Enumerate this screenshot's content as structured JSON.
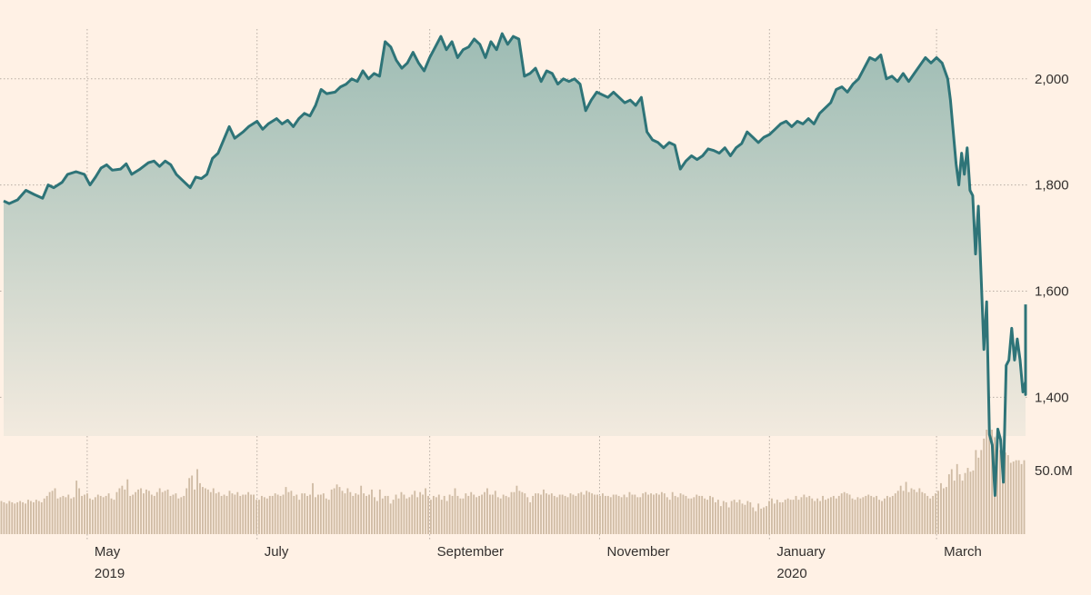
{
  "chart_data": {
    "type": "line",
    "title": "",
    "xlabel": "",
    "ylabel": "",
    "x_range": [
      "2019-04-01",
      "2020-03-31"
    ],
    "price": {
      "ylim": [
        1190,
        2140
      ],
      "y_ticks": [
        {
          "value": 2000,
          "label": "2,000"
        },
        {
          "value": 1800,
          "label": "1,800"
        },
        {
          "value": 1600,
          "label": "1,600"
        },
        {
          "value": 1400,
          "label": "1,400"
        }
      ],
      "line_color": "#2e7478",
      "fill_top_color": "#9dbcb4",
      "fill_bottom_color": "#fff1e5",
      "points": [
        [
          "2019-04-01",
          1770
        ],
        [
          "2019-04-03",
          1765
        ],
        [
          "2019-04-06",
          1772
        ],
        [
          "2019-04-09",
          1790
        ],
        [
          "2019-04-12",
          1782
        ],
        [
          "2019-04-15",
          1775
        ],
        [
          "2019-04-17",
          1800
        ],
        [
          "2019-04-19",
          1795
        ],
        [
          "2019-04-22",
          1805
        ],
        [
          "2019-04-24",
          1820
        ],
        [
          "2019-04-27",
          1825
        ],
        [
          "2019-04-30",
          1820
        ],
        [
          "2019-05-02",
          1800
        ],
        [
          "2019-05-04",
          1815
        ],
        [
          "2019-05-06",
          1832
        ],
        [
          "2019-05-08",
          1838
        ],
        [
          "2019-05-10",
          1828
        ],
        [
          "2019-05-13",
          1830
        ],
        [
          "2019-05-15",
          1840
        ],
        [
          "2019-05-17",
          1820
        ],
        [
          "2019-05-20",
          1830
        ],
        [
          "2019-05-23",
          1842
        ],
        [
          "2019-05-25",
          1845
        ],
        [
          "2019-05-27",
          1835
        ],
        [
          "2019-05-29",
          1845
        ],
        [
          "2019-05-31",
          1838
        ],
        [
          "2019-06-02",
          1820
        ],
        [
          "2019-06-04",
          1810
        ],
        [
          "2019-06-07",
          1795
        ],
        [
          "2019-06-09",
          1815
        ],
        [
          "2019-06-11",
          1812
        ],
        [
          "2019-06-13",
          1820
        ],
        [
          "2019-06-15",
          1850
        ],
        [
          "2019-06-17",
          1860
        ],
        [
          "2019-06-19",
          1885
        ],
        [
          "2019-06-21",
          1910
        ],
        [
          "2019-06-23",
          1888
        ],
        [
          "2019-06-26",
          1900
        ],
        [
          "2019-06-28",
          1910
        ],
        [
          "2019-07-01",
          1920
        ],
        [
          "2019-07-03",
          1905
        ],
        [
          "2019-07-05",
          1915
        ],
        [
          "2019-07-08",
          1925
        ],
        [
          "2019-07-10",
          1915
        ],
        [
          "2019-07-12",
          1922
        ],
        [
          "2019-07-14",
          1910
        ],
        [
          "2019-07-16",
          1925
        ],
        [
          "2019-07-18",
          1935
        ],
        [
          "2019-07-20",
          1930
        ],
        [
          "2019-07-22",
          1950
        ],
        [
          "2019-07-24",
          1980
        ],
        [
          "2019-07-26",
          1972
        ],
        [
          "2019-07-29",
          1975
        ],
        [
          "2019-07-31",
          1985
        ],
        [
          "2019-08-02",
          1990
        ],
        [
          "2019-08-04",
          2000
        ],
        [
          "2019-08-06",
          1995
        ],
        [
          "2019-08-08",
          2015
        ],
        [
          "2019-08-10",
          2000
        ],
        [
          "2019-08-12",
          2010
        ],
        [
          "2019-08-14",
          2005
        ],
        [
          "2019-08-16",
          2070
        ],
        [
          "2019-08-18",
          2060
        ],
        [
          "2019-08-20",
          2035
        ],
        [
          "2019-08-22",
          2020
        ],
        [
          "2019-08-24",
          2030
        ],
        [
          "2019-08-26",
          2050
        ],
        [
          "2019-08-28",
          2030
        ],
        [
          "2019-08-30",
          2015
        ],
        [
          "2019-09-01",
          2040
        ],
        [
          "2019-09-03",
          2060
        ],
        [
          "2019-09-05",
          2080
        ],
        [
          "2019-09-07",
          2055
        ],
        [
          "2019-09-09",
          2070
        ],
        [
          "2019-09-11",
          2040
        ],
        [
          "2019-09-13",
          2055
        ],
        [
          "2019-09-15",
          2060
        ],
        [
          "2019-09-17",
          2075
        ],
        [
          "2019-09-19",
          2065
        ],
        [
          "2019-09-21",
          2040
        ],
        [
          "2019-09-23",
          2070
        ],
        [
          "2019-09-25",
          2055
        ],
        [
          "2019-09-27",
          2085
        ],
        [
          "2019-09-29",
          2065
        ],
        [
          "2019-10-01",
          2080
        ],
        [
          "2019-10-03",
          2075
        ],
        [
          "2019-10-05",
          2005
        ],
        [
          "2019-10-07",
          2010
        ],
        [
          "2019-10-09",
          2020
        ],
        [
          "2019-10-11",
          1995
        ],
        [
          "2019-10-13",
          2015
        ],
        [
          "2019-10-15",
          2010
        ],
        [
          "2019-10-17",
          1990
        ],
        [
          "2019-10-19",
          2000
        ],
        [
          "2019-10-21",
          1995
        ],
        [
          "2019-10-23",
          2000
        ],
        [
          "2019-10-25",
          1990
        ],
        [
          "2019-10-27",
          1940
        ],
        [
          "2019-10-29",
          1960
        ],
        [
          "2019-10-31",
          1975
        ],
        [
          "2019-11-02",
          1970
        ],
        [
          "2019-11-04",
          1965
        ],
        [
          "2019-11-06",
          1975
        ],
        [
          "2019-11-08",
          1965
        ],
        [
          "2019-11-10",
          1955
        ],
        [
          "2019-11-12",
          1960
        ],
        [
          "2019-11-14",
          1950
        ],
        [
          "2019-11-16",
          1965
        ],
        [
          "2019-11-18",
          1900
        ],
        [
          "2019-11-20",
          1885
        ],
        [
          "2019-11-22",
          1880
        ],
        [
          "2019-11-24",
          1870
        ],
        [
          "2019-11-26",
          1880
        ],
        [
          "2019-11-28",
          1875
        ],
        [
          "2019-11-30",
          1830
        ],
        [
          "2019-12-02",
          1845
        ],
        [
          "2019-12-04",
          1855
        ],
        [
          "2019-12-06",
          1848
        ],
        [
          "2019-12-08",
          1855
        ],
        [
          "2019-12-10",
          1868
        ],
        [
          "2019-12-12",
          1865
        ],
        [
          "2019-12-14",
          1860
        ],
        [
          "2019-12-16",
          1870
        ],
        [
          "2019-12-18",
          1855
        ],
        [
          "2019-12-20",
          1870
        ],
        [
          "2019-12-22",
          1878
        ],
        [
          "2019-12-24",
          1900
        ],
        [
          "2019-12-26",
          1890
        ],
        [
          "2019-12-28",
          1880
        ],
        [
          "2019-12-30",
          1890
        ],
        [
          "2020-01-01",
          1895
        ],
        [
          "2020-01-03",
          1905
        ],
        [
          "2020-01-05",
          1915
        ],
        [
          "2020-01-07",
          1920
        ],
        [
          "2020-01-09",
          1910
        ],
        [
          "2020-01-11",
          1920
        ],
        [
          "2020-01-13",
          1915
        ],
        [
          "2020-01-15",
          1925
        ],
        [
          "2020-01-17",
          1915
        ],
        [
          "2020-01-19",
          1935
        ],
        [
          "2020-01-21",
          1945
        ],
        [
          "2020-01-23",
          1955
        ],
        [
          "2020-01-25",
          1980
        ],
        [
          "2020-01-27",
          1985
        ],
        [
          "2020-01-29",
          1975
        ],
        [
          "2020-01-31",
          1990
        ],
        [
          "2020-02-02",
          2000
        ],
        [
          "2020-02-04",
          2020
        ],
        [
          "2020-02-06",
          2040
        ],
        [
          "2020-02-08",
          2035
        ],
        [
          "2020-02-10",
          2045
        ],
        [
          "2020-02-12",
          2000
        ],
        [
          "2020-02-14",
          2005
        ],
        [
          "2020-02-16",
          1995
        ],
        [
          "2020-02-18",
          2010
        ],
        [
          "2020-02-20",
          1995
        ],
        [
          "2020-02-22",
          2010
        ],
        [
          "2020-02-24",
          2025
        ],
        [
          "2020-02-26",
          2040
        ],
        [
          "2020-02-28",
          2030
        ],
        [
          "2020-03-01",
          2040
        ],
        [
          "2020-03-03",
          2030
        ],
        [
          "2020-03-05",
          2000
        ],
        [
          "2020-03-06",
          1960
        ],
        [
          "2020-03-08",
          1840
        ],
        [
          "2020-03-09",
          1800
        ],
        [
          "2020-03-10",
          1860
        ],
        [
          "2020-03-11",
          1820
        ],
        [
          "2020-03-12",
          1870
        ],
        [
          "2020-03-13",
          1790
        ],
        [
          "2020-03-14",
          1780
        ],
        [
          "2020-03-15",
          1670
        ],
        [
          "2020-03-16",
          1760
        ],
        [
          "2020-03-17",
          1630
        ],
        [
          "2020-03-18",
          1490
        ],
        [
          "2020-03-19",
          1580
        ],
        [
          "2020-03-20",
          1330
        ],
        [
          "2020-03-21",
          1310
        ],
        [
          "2020-03-22",
          1215
        ],
        [
          "2020-03-23",
          1340
        ],
        [
          "2020-03-24",
          1320
        ],
        [
          "2020-03-25",
          1240
        ],
        [
          "2020-03-26",
          1460
        ],
        [
          "2020-03-27",
          1470
        ],
        [
          "2020-03-28",
          1530
        ],
        [
          "2020-03-29",
          1470
        ],
        [
          "2020-03-30",
          1510
        ],
        [
          "2020-03-31",
          1470
        ],
        [
          "2020-04-01",
          1410
        ],
        [
          "2020-04-02",
          1430
        ],
        [
          "2020-04-03",
          1405
        ],
        [
          "2020-04-04",
          1545
        ],
        [
          "2020-04-05",
          1575
        ]
      ]
    },
    "volume": {
      "tick": {
        "value": 50,
        "label": "50.0M"
      },
      "bar_color": "#cfbba4",
      "values": [
        26,
        25,
        24,
        26,
        25,
        24,
        25,
        26,
        25,
        24,
        27,
        26,
        25,
        27,
        26,
        25,
        28,
        30,
        33,
        34,
        36,
        28,
        29,
        30,
        29,
        31,
        28,
        29,
        42,
        36,
        30,
        31,
        32,
        28,
        27,
        29,
        31,
        30,
        29,
        30,
        32,
        28,
        27,
        33,
        36,
        38,
        35,
        43,
        30,
        31,
        33,
        35,
        36,
        32,
        35,
        34,
        31,
        30,
        33,
        36,
        33,
        34,
        35,
        30,
        31,
        32,
        28,
        29,
        30,
        36,
        44,
        46,
        35,
        51,
        40,
        37,
        36,
        35,
        33,
        36,
        32,
        33,
        30,
        31,
        30,
        34,
        32,
        31,
        33,
        30,
        31,
        31,
        33,
        31,
        31,
        27,
        27,
        30,
        29,
        28,
        30,
        30,
        32,
        31,
        30,
        31,
        37,
        33,
        34,
        30,
        31,
        27,
        32,
        32,
        30,
        31,
        40,
        29,
        31,
        31,
        32,
        28,
        27,
        35,
        36,
        39,
        37,
        34,
        32,
        36,
        33,
        30,
        32,
        31,
        38,
        32,
        30,
        31,
        35,
        29,
        26,
        35,
        28,
        30,
        30,
        24,
        27,
        31,
        28,
        33,
        31,
        28,
        29,
        31,
        34,
        29,
        33,
        31,
        36,
        30,
        27,
        30,
        29,
        31,
        27,
        30,
        26,
        31,
        30,
        36,
        30,
        28,
        28,
        32,
        30,
        33,
        31,
        29,
        30,
        31,
        33,
        36,
        31,
        31,
        34,
        29,
        28,
        31,
        30,
        29,
        33,
        33,
        38,
        34,
        33,
        32,
        29,
        25,
        30,
        32,
        32,
        31,
        35,
        32,
        31,
        32,
        30,
        29,
        31,
        31,
        30,
        29,
        32,
        31,
        30,
        32,
        33,
        31,
        34,
        33,
        32,
        31,
        31,
        30,
        32,
        30,
        30,
        29,
        31,
        31,
        30,
        29,
        31,
        29,
        33,
        31,
        31,
        29,
        29,
        32,
        33,
        31,
        32,
        31,
        32,
        31,
        33,
        32,
        29,
        27,
        33,
        30,
        29,
        32,
        31,
        30,
        28,
        28,
        29,
        31,
        30,
        30,
        28,
        27,
        30,
        29,
        25,
        27,
        22,
        26,
        25,
        21,
        26,
        27,
        25,
        27,
        24,
        23,
        26,
        25,
        21,
        18,
        24,
        20,
        21,
        22,
        26,
        28,
        24,
        27,
        25,
        25,
        27,
        28,
        27,
        27,
        30,
        27,
        29,
        31,
        29,
        30,
        28,
        26,
        28,
        26,
        30,
        27,
        28,
        29,
        30,
        28,
        30,
        32,
        33,
        32,
        31,
        28,
        27,
        29,
        28,
        29,
        30,
        31,
        30,
        29,
        30,
        27,
        26,
        28,
        30,
        29,
        30,
        32,
        34,
        38,
        34,
        41,
        33,
        36,
        35,
        33,
        36,
        33,
        32,
        30,
        28,
        30,
        32,
        34,
        40,
        36,
        37,
        47,
        51,
        42,
        55,
        47,
        42,
        48,
        52,
        49,
        50,
        66,
        60,
        51,
        53,
        50,
        58,
        57,
        55,
        56,
        60,
        58,
        64,
        57,
        50,
        54,
        58,
        57,
        55,
        58
      ],
      "highlight_values": [
        66,
        75,
        82,
        82,
        82,
        76,
        73,
        66,
        62,
        58,
        62,
        56,
        57,
        51,
        58
      ]
    },
    "x_ticks": [
      {
        "date": "2019-05-01",
        "label": "May",
        "year": "2019"
      },
      {
        "date": "2019-07-01",
        "label": "July",
        "year": ""
      },
      {
        "date": "2019-09-01",
        "label": "September",
        "year": ""
      },
      {
        "date": "2019-11-01",
        "label": "November",
        "year": ""
      },
      {
        "date": "2020-01-01",
        "label": "January",
        "year": "2020"
      },
      {
        "date": "2020-03-01",
        "label": "March",
        "year": ""
      }
    ],
    "grid": true
  }
}
